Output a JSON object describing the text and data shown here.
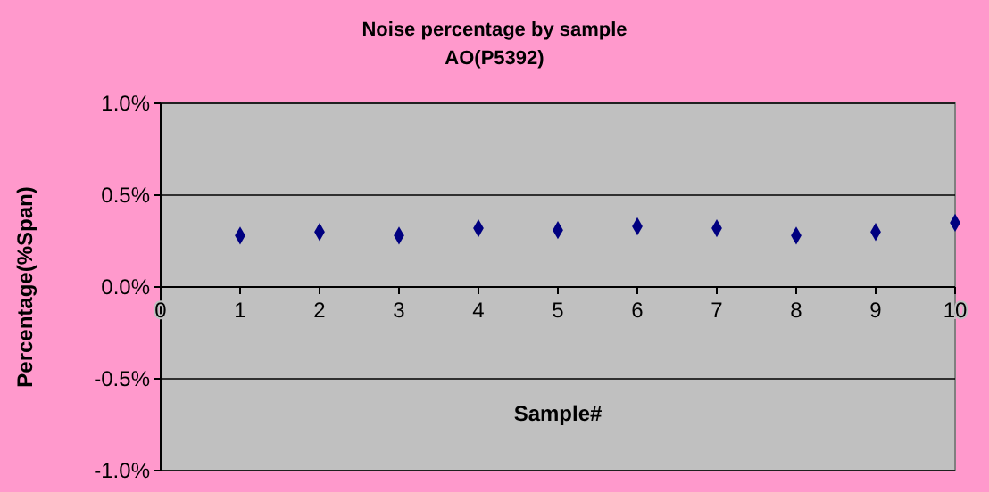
{
  "chart_data": {
    "type": "scatter",
    "title": "Noise percentage by sample",
    "subtitle": "AO(P5392)",
    "xlabel": "Sample#",
    "ylabel": "Percentage(%Span)",
    "x": [
      1,
      2,
      3,
      4,
      5,
      6,
      7,
      8,
      9,
      10
    ],
    "series": [
      {
        "color": "#000080",
        "values": [
          0.28,
          0.3,
          0.28,
          0.32,
          0.31,
          0.33,
          0.32,
          0.28,
          0.3,
          0.35
        ]
      }
    ],
    "xlim": [
      0,
      10
    ],
    "xticks": [
      0,
      1,
      2,
      3,
      4,
      5,
      6,
      7,
      8,
      9,
      10
    ],
    "ylim": [
      -1.0,
      1.0
    ],
    "yticks": [
      {
        "value": -1.0,
        "label": "-1.0%"
      },
      {
        "value": -0.5,
        "label": "-0.5%"
      },
      {
        "value": 0,
        "label": "0.0%"
      },
      {
        "value": 0.5,
        "label": "0.5%"
      },
      {
        "value": 1.0,
        "label": "1.0%"
      }
    ],
    "grid": "y",
    "marker": "diamond"
  }
}
